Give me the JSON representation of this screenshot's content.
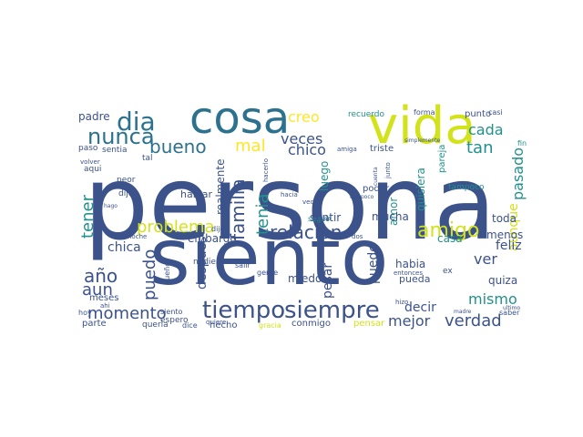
{
  "words": [
    {
      "text": "persona",
      "color": "#3b528b"
    },
    {
      "text": "siento",
      "color": "#3b528b"
    },
    {
      "text": "cosa",
      "color": "#2c728e"
    },
    {
      "text": "vida",
      "color": "#d2e21b"
    },
    {
      "text": "tiempo",
      "color": "#3b528b"
    },
    {
      "text": "siempre",
      "color": "#3b528b"
    },
    {
      "text": "dia",
      "color": "#2c728e"
    },
    {
      "text": "nunca",
      "color": "#2c728e"
    },
    {
      "text": "bueno",
      "color": "#2c728e"
    },
    {
      "text": "relacion",
      "color": "#3b528b"
    },
    {
      "text": "amigo",
      "color": "#d2e21b"
    },
    {
      "text": "familia",
      "color": "#3b528b"
    },
    {
      "text": "problema",
      "color": "#d2e21b"
    },
    {
      "text": "tener",
      "color": "#21918c"
    },
    {
      "text": "tenia",
      "color": "#21918c"
    },
    {
      "text": "año",
      "color": "#3b528b"
    },
    {
      "text": "aun",
      "color": "#3b528b"
    },
    {
      "text": "puedo",
      "color": "#3b528b"
    },
    {
      "text": "momento",
      "color": "#3b528b"
    },
    {
      "text": "verdad",
      "color": "#3b528b"
    },
    {
      "text": "mismo",
      "color": "#21918c"
    },
    {
      "text": "veces",
      "color": "#3b528b"
    },
    {
      "text": "creo",
      "color": "#fde725"
    },
    {
      "text": "mal",
      "color": "#fde725"
    },
    {
      "text": "chico",
      "color": "#3b528b"
    },
    {
      "text": "cada",
      "color": "#21918c"
    },
    {
      "text": "tan",
      "color": "#21918c"
    },
    {
      "text": "pasado",
      "color": "#21918c"
    },
    {
      "text": "ver",
      "color": "#3b528b"
    },
    {
      "text": "chica",
      "color": "#3b528b"
    },
    {
      "text": "despues",
      "color": "#3b528b"
    },
    {
      "text": "padre",
      "color": "#3b528b"
    },
    {
      "text": "aunque",
      "color": "#d2e21b"
    },
    {
      "text": "feliz",
      "color": "#3b528b"
    },
    {
      "text": "mejor",
      "color": "#3b528b"
    },
    {
      "text": "decir",
      "color": "#3b528b"
    },
    {
      "text": "puede",
      "color": "#3b528b"
    },
    {
      "text": "pesar",
      "color": "#3b528b"
    },
    {
      "text": "amor",
      "color": "#21918c"
    },
    {
      "text": "quisiera",
      "color": "#21918c"
    },
    {
      "text": "luego",
      "color": "#21918c"
    },
    {
      "text": "realmente",
      "color": "#3b528b"
    },
    {
      "text": "embargo",
      "color": "#3b528b"
    },
    {
      "text": "sentir",
      "color": "#3b528b"
    },
    {
      "text": "mucha",
      "color": "#3b528b"
    },
    {
      "text": "habia",
      "color": "#3b528b"
    },
    {
      "text": "menos",
      "color": "#3b528b"
    },
    {
      "text": "casa",
      "color": "#21918c"
    },
    {
      "text": "toda",
      "color": "#3b528b"
    },
    {
      "text": "quiza",
      "color": "#3b528b"
    },
    {
      "text": "miedo",
      "color": "#3b528b"
    },
    {
      "text": "conmigo",
      "color": "#3b528b"
    },
    {
      "text": "hecho",
      "color": "#3b528b"
    },
    {
      "text": "parte",
      "color": "#3b528b"
    },
    {
      "text": "meses",
      "color": "#3b528b"
    },
    {
      "text": "hoy",
      "color": "#3b528b"
    },
    {
      "text": "hablar",
      "color": "#3b528b"
    },
    {
      "text": "pensar",
      "color": "#d2e21b"
    },
    {
      "text": "pueda",
      "color": "#3b528b"
    },
    {
      "text": "recuerdo",
      "color": "#21918c"
    },
    {
      "text": "forma",
      "color": "#3b528b"
    },
    {
      "text": "punto",
      "color": "#3b528b"
    },
    {
      "text": "triste",
      "color": "#3b528b"
    },
    {
      "text": "poder",
      "color": "#3b528b"
    },
    {
      "text": "tampoco",
      "color": "#21918c"
    },
    {
      "text": "pareja",
      "color": "#21918c"
    },
    {
      "text": "aqui",
      "color": "#3b528b"
    },
    {
      "text": "sentia",
      "color": "#3b528b"
    },
    {
      "text": "paso",
      "color": "#3b528b"
    },
    {
      "text": "peor",
      "color": "#3b528b"
    },
    {
      "text": "dijo",
      "color": "#3b528b"
    },
    {
      "text": "tal",
      "color": "#3b528b"
    },
    {
      "text": "seguir",
      "color": "#21918c"
    },
    {
      "text": "nadie",
      "color": "#3b528b"
    },
    {
      "text": "salir",
      "color": "#3b528b"
    },
    {
      "text": "gente",
      "color": "#3b528b"
    },
    {
      "text": "siento",
      "color": "#3b528b"
    },
    {
      "text": "queria",
      "color": "#3b528b"
    },
    {
      "text": "espero",
      "color": "#3b528b"
    },
    {
      "text": "dice",
      "color": "#3b528b"
    },
    {
      "text": "gracia",
      "color": "#d2e21b"
    },
    {
      "text": "dije",
      "color": "#3b528b"
    },
    {
      "text": "noche",
      "color": "#3b528b"
    },
    {
      "text": "volver",
      "color": "#3b528b"
    },
    {
      "text": "amiga",
      "color": "#3b528b"
    },
    {
      "text": "hacia",
      "color": "#3b528b"
    },
    {
      "text": "veo",
      "color": "#3b528b"
    },
    {
      "text": "incluso",
      "color": "#3b528b"
    },
    {
      "text": "entonces",
      "color": "#3b528b"
    },
    {
      "text": "hizo",
      "color": "#3b528b"
    },
    {
      "text": "fin",
      "color": "#21918c"
    },
    {
      "text": "casi",
      "color": "#3b528b"
    },
    {
      "text": "saber",
      "color": "#3b528b"
    },
    {
      "text": "sueño",
      "color": "#3b528b"
    },
    {
      "text": "ex",
      "color": "#3b528b"
    },
    {
      "text": "ahi",
      "color": "#3b528b"
    },
    {
      "text": "hago",
      "color": "#3b528b"
    },
    {
      "text": "quiere",
      "color": "#3b528b"
    },
    {
      "text": "tampoco",
      "color": "#3b528b"
    },
    {
      "text": "simplemente",
      "color": "#3b528b"
    },
    {
      "text": "madre",
      "color": "#3b528b"
    },
    {
      "text": "dos",
      "color": "#3b528b"
    },
    {
      "text": "cuenta",
      "color": "#3b528b"
    },
    {
      "text": "junto",
      "color": "#3b528b"
    },
    {
      "text": "hacerlo",
      "color": "#3b528b"
    },
    {
      "text": "ultimo",
      "color": "#3b528b"
    }
  ]
}
